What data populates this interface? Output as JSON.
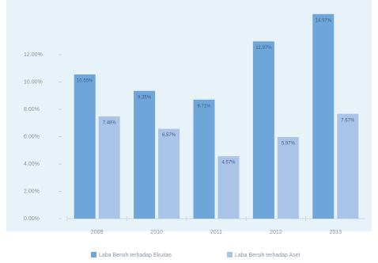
{
  "chart_data": {
    "type": "bar",
    "categories": [
      "2009",
      "2010",
      "2011",
      "2012",
      "2013"
    ],
    "series": [
      {
        "name": "Laba Bersih terhadap Ekuitas",
        "color": "#6fa6da",
        "values": [
          10.55,
          9.35,
          8.71,
          12.97,
          14.97
        ],
        "value_labels": [
          "10.55%",
          "9.35%",
          "8.71%",
          "12.97%",
          "14.97%"
        ]
      },
      {
        "name": "Laba Bersih terhadap Aset",
        "color": "#aac4e8",
        "values": [
          7.48,
          6.57,
          4.57,
          5.97,
          7.67
        ],
        "value_labels": [
          "7.48%",
          "6.57%",
          "4.57%",
          "5.97%",
          "7.67%"
        ]
      }
    ],
    "ylim": [
      0,
      16
    ],
    "yticks": [
      {
        "value": 0,
        "label": "0.00%"
      },
      {
        "value": 2,
        "label": "2.00%"
      },
      {
        "value": 4,
        "label": "4.00%"
      },
      {
        "value": 6,
        "label": "6.00%"
      },
      {
        "value": 8,
        "label": "8.00%"
      },
      {
        "value": 10,
        "label": "10.00%"
      },
      {
        "value": 12,
        "label": "12.00%"
      }
    ],
    "legend": "bottom"
  }
}
